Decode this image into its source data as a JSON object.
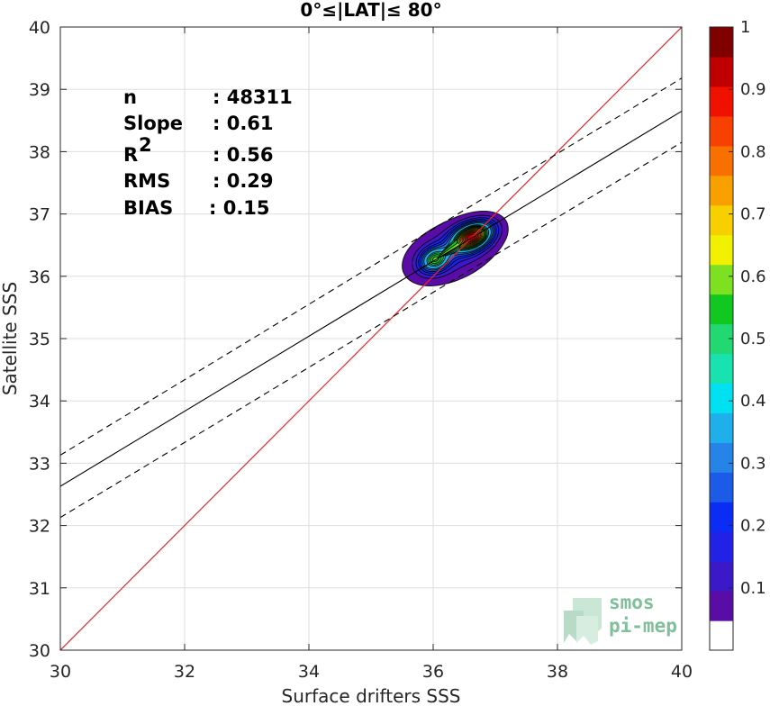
{
  "chart_data": {
    "type": "scatter",
    "title": "0°≤|LAT|≤ 80°",
    "xlabel": "Surface drifters SSS",
    "ylabel": "Satellite SSS",
    "xlim": [
      30,
      40
    ],
    "ylim": [
      30,
      40
    ],
    "xticks": [
      "30",
      "32",
      "34",
      "36",
      "38",
      "40"
    ],
    "yticks": [
      "30",
      "31",
      "32",
      "33",
      "34",
      "35",
      "36",
      "37",
      "38",
      "39",
      "40"
    ],
    "grid": true,
    "stats": [
      {
        "label": "n",
        "value": ": 48311"
      },
      {
        "label": "Slope",
        "value": ": 0.61"
      },
      {
        "label": "R",
        "sup": "2",
        "value": ": 0.56"
      },
      {
        "label": "RMS",
        "value": ": 0.29"
      },
      {
        "label": "BIAS",
        "value": ": 0.15"
      }
    ],
    "lines": {
      "identity": {
        "slope": 1,
        "intercept": 0,
        "color": "#e8262a"
      },
      "fit": {
        "x": [
          30,
          40
        ],
        "y": [
          32.63,
          38.65
        ]
      },
      "fit_upper": {
        "x": [
          30,
          40
        ],
        "y": [
          33.13,
          39.18
        ]
      },
      "fit_lower": {
        "x": [
          30,
          40
        ],
        "y": [
          32.13,
          38.15
        ]
      }
    },
    "density": {
      "peaks": [
        {
          "x": 36.62,
          "y": 36.63,
          "value": 1.0
        },
        {
          "x": 36.03,
          "y": 36.27,
          "value": 0.62
        }
      ],
      "extent": {
        "xmin": 35.6,
        "xmax": 37.1,
        "ymin": 35.7,
        "ymax": 37.05
      }
    },
    "colorbar": {
      "min": 0,
      "max": 1,
      "ticks": [
        "0.1",
        "0.2",
        "0.3",
        "0.4",
        "0.5",
        "0.6",
        "0.7",
        "0.8",
        "0.9",
        "1"
      ],
      "levels": [
        0.05,
        0.1,
        0.15,
        0.2,
        0.25,
        0.3,
        0.35,
        0.4,
        0.45,
        0.5,
        0.55,
        0.6,
        0.65,
        0.7,
        0.75,
        0.8,
        0.85,
        0.9,
        0.95
      ],
      "colors": [
        "#ffffff",
        "#5a0ca6",
        "#3b18c8",
        "#2222e6",
        "#0a2cf5",
        "#1c5ae8",
        "#2684e8",
        "#1fb0ec",
        "#00e0f0",
        "#18e2b0",
        "#22d870",
        "#10c820",
        "#7de020",
        "#f0f000",
        "#f8d000",
        "#f8a000",
        "#f87000",
        "#f84000",
        "#f01000",
        "#c00000",
        "#800000"
      ]
    }
  },
  "logo": {
    "line1": "smos",
    "line2": "pi-mep"
  }
}
